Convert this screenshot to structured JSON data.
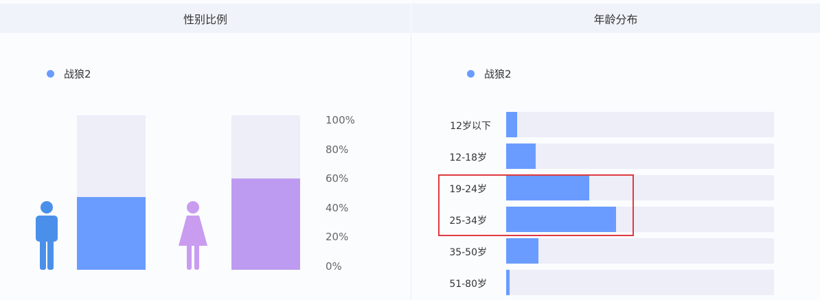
{
  "colors": {
    "series": "#6a9cff",
    "female": "#bd9bf0",
    "track": "#edeef8",
    "male_icon": "#4a90ea",
    "female_icon": "#c99cf0",
    "highlight": "#e0393e"
  },
  "gender_panel": {
    "title": "性别比例",
    "legend": "战狼2"
  },
  "age_panel": {
    "title": "年龄分布",
    "legend": "战狼2"
  },
  "chart_data": [
    {
      "type": "bar",
      "title": "性别比例",
      "categories": [
        "male-icon",
        "female-icon"
      ],
      "series": [
        {
          "name": "战狼2",
          "values": [
            47,
            59
          ]
        }
      ],
      "y_ticks": [
        "100%",
        "80%",
        "60%",
        "40%",
        "20%",
        "0%"
      ],
      "ylim": [
        0,
        100
      ],
      "legend": "top-left"
    },
    {
      "type": "bar",
      "orientation": "horizontal",
      "title": "年龄分布",
      "categories": [
        "12岁以下",
        "12-18岁",
        "19-24岁",
        "25-34岁",
        "35-50岁",
        "51-80岁"
      ],
      "series": [
        {
          "name": "战狼2",
          "values": [
            4,
            11,
            31,
            41,
            12,
            1.3
          ]
        }
      ],
      "xlim": [
        0,
        100
      ],
      "legend": "top-left",
      "highlighted": [
        "19-24岁",
        "25-34岁"
      ]
    }
  ]
}
